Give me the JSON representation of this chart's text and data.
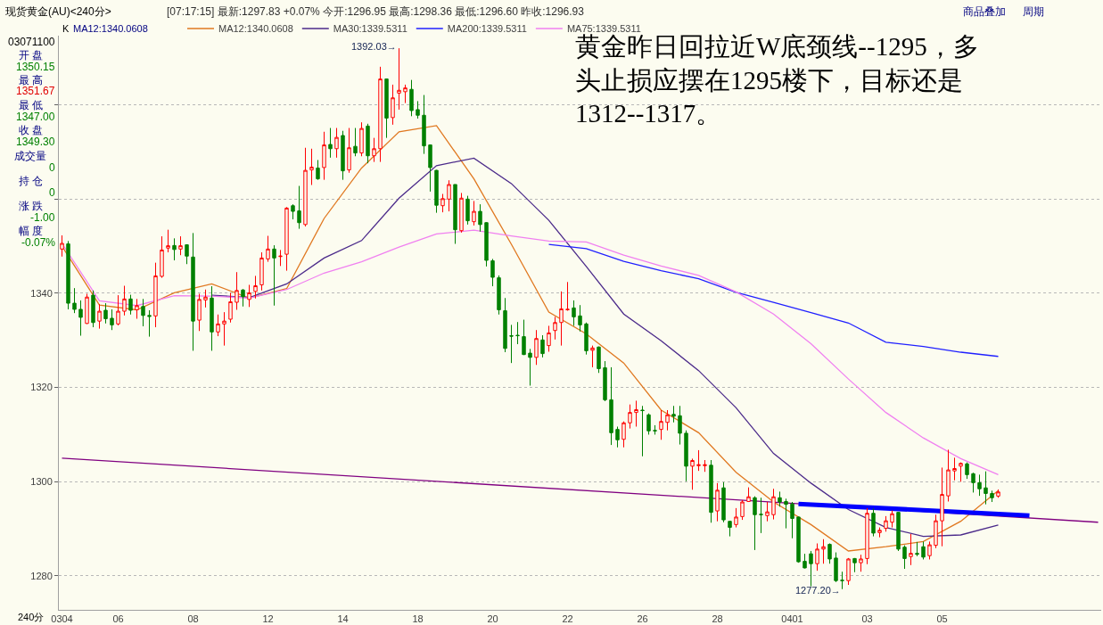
{
  "chart_data": {
    "type": "candlestick",
    "title": "现货黄金(AU)<240分>",
    "subtitle": "[07:17:15] 最新:1297.83 +0.07% 今开:1296.95 最高:1298.36 最低:1296.60 昨收:1296.93",
    "annotations": [
      "K",
      "MA12:1340.0608",
      "黄金昨日回拉近W底颈线--1295，多头止损应摆在1295楼下，目标还是1312--1317。",
      "商品叠加",
      "周期",
      "03071100",
      "开 盘",
      "1350.15",
      "最 高",
      "1351.67",
      "最 低",
      "1347.00",
      "收 盘",
      "1349.30",
      "成交量",
      "0",
      "持 仓",
      "0",
      "涨 跌",
      "-1.00",
      "幅 度",
      "-0.07%",
      "240分",
      "1392.03→",
      "1277.20→"
    ],
    "categories": [
      "0304",
      null,
      null,
      null,
      null,
      null,
      null,
      null,
      null,
      "06",
      null,
      null,
      null,
      null,
      null,
      null,
      null,
      null,
      null,
      null,
      null,
      "08",
      null,
      null,
      null,
      null,
      null,
      null,
      null,
      null,
      null,
      null,
      null,
      "12",
      null,
      null,
      null,
      null,
      null,
      null,
      null,
      null,
      null,
      null,
      null,
      "14",
      null,
      null,
      null,
      null,
      null,
      null,
      null,
      null,
      null,
      null,
      null,
      "18",
      null,
      null,
      null,
      null,
      null,
      null,
      null,
      null,
      null,
      null,
      null,
      "20",
      null,
      null,
      null,
      null,
      null,
      null,
      null,
      null,
      null,
      null,
      null,
      "22",
      null,
      null,
      null,
      null,
      null,
      null,
      null,
      null,
      null,
      null,
      null,
      "26",
      null,
      null,
      null,
      null,
      null,
      null,
      null,
      null,
      null,
      null,
      null,
      "28",
      null,
      null,
      null,
      null,
      null,
      null,
      null,
      null,
      null,
      null,
      null,
      "0401",
      null,
      null,
      null,
      null,
      null,
      null,
      null,
      null,
      null,
      null,
      null,
      "03",
      null,
      null,
      null,
      null,
      null,
      null,
      null,
      null,
      null,
      null,
      null,
      "05",
      null,
      null,
      null,
      null,
      null,
      null,
      null,
      null,
      null,
      null,
      null,
      null,
      null,
      null,
      null,
      null,
      null,
      null,
      null,
      null,
      null,
      null,
      null,
      null,
      null
    ],
    "ohlc": [
      [
        1349.4,
        1352.3,
        1347.8,
        1350.6
      ],
      [
        1350.5,
        1351.1,
        1336.6,
        1337.9
      ],
      [
        1337.9,
        1341.1,
        1335.8,
        1336.6
      ],
      [
        1336.6,
        1338.5,
        1331.0,
        1334.9
      ],
      [
        1333.6,
        1339.9,
        1333.5,
        1339.2
      ],
      [
        1339.6,
        1340.6,
        1332.8,
        1333.8
      ],
      [
        1334.1,
        1337.7,
        1332.5,
        1336.2
      ],
      [
        1336.4,
        1337.9,
        1333.6,
        1334.6
      ],
      [
        1334.7,
        1336.6,
        1332.2,
        1333.3
      ],
      [
        1333.5,
        1339.6,
        1333.2,
        1336.2
      ],
      [
        1336.2,
        1341.6,
        1335.3,
        1338.8
      ],
      [
        1338.8,
        1339.7,
        1335.5,
        1336.4
      ],
      [
        1336.5,
        1338.8,
        1334.6,
        1337.4
      ],
      [
        1337.2,
        1338.8,
        1333.0,
        1335.3
      ],
      [
        1335.3,
        1336.4,
        1330.8,
        1335.1
      ],
      [
        1335.2,
        1346.5,
        1332.8,
        1343.7
      ],
      [
        1343.6,
        1352.1,
        1343.3,
        1349.2
      ],
      [
        1349.6,
        1353.5,
        1348.7,
        1350.1
      ],
      [
        1350.15,
        1351.67,
        1347.0,
        1349.3
      ],
      [
        1349.4,
        1352.1,
        1348.1,
        1350.1
      ],
      [
        1350.3,
        1350.4,
        1346.2,
        1347.9
      ],
      [
        1347.7,
        1352.8,
        1327.8,
        1334.1
      ],
      [
        1334.3,
        1339.9,
        1332.0,
        1338.7
      ],
      [
        1338.6,
        1340.8,
        1337.0,
        1339.2
      ],
      [
        1339.0,
        1341.5,
        1327.8,
        1331.8
      ],
      [
        1331.8,
        1335.5,
        1330.9,
        1333.5
      ],
      [
        1333.5,
        1336.0,
        1328.9,
        1334.1
      ],
      [
        1334.5,
        1340.1,
        1333.8,
        1338.2
      ],
      [
        1338.1,
        1344.5,
        1336.5,
        1340.6
      ],
      [
        1340.7,
        1340.9,
        1337.2,
        1339.3
      ],
      [
        1338.7,
        1341.8,
        1337.1,
        1340.1
      ],
      [
        1340.4,
        1343.7,
        1338.9,
        1341.6
      ],
      [
        1341.8,
        1348.7,
        1340.6,
        1347.5
      ],
      [
        1347.3,
        1352.2,
        1346.7,
        1349.4
      ],
      [
        1349.4,
        1350.2,
        1337.4,
        1347.5
      ],
      [
        1347.8,
        1349.2,
        1345.8,
        1347.9
      ],
      [
        1348.3,
        1358.3,
        1344.8,
        1358.1
      ],
      [
        1358.6,
        1358.9,
        1355.7,
        1357.4
      ],
      [
        1357.5,
        1362.8,
        1353.7,
        1355.0
      ],
      [
        1354.6,
        1370.9,
        1354.2,
        1366.1
      ],
      [
        1366.2,
        1370.7,
        1363.0,
        1366.8
      ],
      [
        1366.6,
        1368.3,
        1364.1,
        1364.3
      ],
      [
        1366.7,
        1374.3,
        1364.1,
        1371.5
      ],
      [
        1371.6,
        1375.1,
        1368.8,
        1370.7
      ],
      [
        1370.7,
        1375.1,
        1368.8,
        1373.1
      ],
      [
        1373.5,
        1374.5,
        1364.1,
        1366.0
      ],
      [
        1366.2,
        1375.1,
        1365.6,
        1370.9
      ],
      [
        1371.2,
        1375.1,
        1369.1,
        1369.8
      ],
      [
        1369.8,
        1376.3,
        1369.1,
        1375.0
      ],
      [
        1375.5,
        1376.0,
        1367.6,
        1369.2
      ],
      [
        1369.2,
        1373.0,
        1367.9,
        1370.7
      ],
      [
        1370.7,
        1388.1,
        1367.9,
        1385.5
      ],
      [
        1385.5,
        1385.5,
        1373.0,
        1377.2
      ],
      [
        1377.3,
        1384.3,
        1375.8,
        1381.5
      ],
      [
        1382.5,
        1392.03,
        1379.0,
        1383.1
      ],
      [
        1382.8,
        1384.3,
        1380.4,
        1383.6
      ],
      [
        1383.3,
        1385.3,
        1377.6,
        1378.8
      ],
      [
        1379.0,
        1380.8,
        1377.1,
        1377.8
      ],
      [
        1377.8,
        1382.1,
        1369.6,
        1371.3
      ],
      [
        1371.5,
        1371.6,
        1361.6,
        1366.7
      ],
      [
        1366.1,
        1366.2,
        1357.1,
        1358.7
      ],
      [
        1358.6,
        1361.1,
        1357.2,
        1360.1
      ],
      [
        1360.0,
        1364.0,
        1357.4,
        1363.1
      ],
      [
        1363.1,
        1363.1,
        1350.5,
        1353.5
      ],
      [
        1353.3,
        1361.3,
        1352.9,
        1360.2
      ],
      [
        1360.0,
        1360.7,
        1354.6,
        1355.4
      ],
      [
        1355.2,
        1359.6,
        1354.4,
        1357.4
      ],
      [
        1357.4,
        1358.9,
        1353.1,
        1354.6
      ],
      [
        1355.0,
        1355.1,
        1345.7,
        1347.0
      ],
      [
        1346.9,
        1347.3,
        1341.5,
        1343.4
      ],
      [
        1343.3,
        1343.8,
        1335.5,
        1336.5
      ],
      [
        1336.3,
        1339.0,
        1327.5,
        1328.3
      ],
      [
        1331.0,
        1333.3,
        1325.2,
        1330.9
      ],
      [
        1331.1,
        1333.9,
        1329.2,
        1331.0
      ],
      [
        1330.8,
        1334.4,
        1326.9,
        1327.0
      ],
      [
        1327.3,
        1328.2,
        1320.4,
        1326.4
      ],
      [
        1326.4,
        1332.2,
        1324.8,
        1330.4
      ],
      [
        1330.1,
        1331.1,
        1326.4,
        1327.2
      ],
      [
        1328.9,
        1333.1,
        1327.6,
        1331.6
      ],
      [
        1332.1,
        1335.0,
        1330.2,
        1333.8
      ],
      [
        1333.8,
        1340.4,
        1328.9,
        1336.7
      ],
      [
        1336.5,
        1342.4,
        1336.3,
        1336.6
      ],
      [
        1336.9,
        1338.5,
        1333.1,
        1335.0
      ],
      [
        1335.2,
        1337.5,
        1331.9,
        1333.3
      ],
      [
        1333.5,
        1333.8,
        1327.0,
        1327.8
      ],
      [
        1327.9,
        1328.9,
        1324.3,
        1328.4
      ],
      [
        1328.6,
        1328.7,
        1323.1,
        1324.0
      ],
      [
        1324.2,
        1325.6,
        1317.1,
        1317.4
      ],
      [
        1317.4,
        1324.3,
        1307.8,
        1310.4
      ],
      [
        1311.1,
        1311.7,
        1307.3,
        1308.9
      ],
      [
        1309.0,
        1312.8,
        1307.3,
        1312.5
      ],
      [
        1312.5,
        1316.4,
        1311.3,
        1314.7
      ],
      [
        1314.7,
        1317.2,
        1311.7,
        1315.3
      ],
      [
        1315.2,
        1316.1,
        1305.4,
        1315.1
      ],
      [
        1314.2,
        1314.5,
        1310.0,
        1310.8
      ],
      [
        1310.9,
        1312.0,
        1310.0,
        1310.8
      ],
      [
        1311.1,
        1315.2,
        1308.9,
        1312.8
      ],
      [
        1312.6,
        1315.2,
        1310.9,
        1314.2
      ],
      [
        1314.3,
        1316.1,
        1312.6,
        1313.9
      ],
      [
        1314.0,
        1316.1,
        1307.9,
        1310.3
      ],
      [
        1310.3,
        1310.9,
        1300.1,
        1303.3
      ],
      [
        1303.3,
        1304.9,
        1298.3,
        1304.5
      ],
      [
        1303.4,
        1306.7,
        1302.3,
        1303.6
      ],
      [
        1303.4,
        1304.6,
        1302.1,
        1303.6
      ],
      [
        1303.5,
        1304.6,
        1291.3,
        1293.5
      ],
      [
        1293.8,
        1299.7,
        1291.6,
        1298.2
      ],
      [
        1298.7,
        1299.9,
        1291.4,
        1291.9
      ],
      [
        1291.6,
        1291.6,
        1288.4,
        1290.3
      ],
      [
        1290.9,
        1294.4,
        1290.3,
        1292.5
      ],
      [
        1292.6,
        1296.1,
        1291.9,
        1295.7
      ],
      [
        1295.8,
        1298.8,
        1295.7,
        1296.8
      ],
      [
        1296.6,
        1296.9,
        1285.5,
        1293.0
      ],
      [
        1293.1,
        1296.6,
        1289.1,
        1293.0
      ],
      [
        1292.8,
        1295.7,
        1291.6,
        1293.6
      ],
      [
        1293.0,
        1298.5,
        1292.0,
        1296.8
      ],
      [
        1296.6,
        1297.9,
        1294.7,
        1295.7
      ],
      [
        1295.8,
        1296.4,
        1290.1,
        1295.2
      ],
      [
        1295.3,
        1295.7,
        1288.0,
        1292.2
      ],
      [
        1292.5,
        1292.6,
        1282.8,
        1283.0
      ],
      [
        1283.1,
        1284.7,
        1281.6,
        1281.7
      ],
      [
        1284.7,
        1285.3,
        1277.8,
        1282.6
      ],
      [
        1282.6,
        1286.9,
        1281.1,
        1285.7
      ],
      [
        1285.7,
        1287.8,
        1282.6,
        1286.2
      ],
      [
        1286.7,
        1286.9,
        1282.6,
        1283.6
      ],
      [
        1283.8,
        1285.0,
        1278.7,
        1279.0
      ],
      [
        1279.1,
        1280.9,
        1277.2,
        1279.0
      ],
      [
        1279.0,
        1283.8,
        1278.1,
        1283.6
      ],
      [
        1283.7,
        1283.8,
        1280.8,
        1282.8
      ],
      [
        1282.8,
        1284.5,
        1280.9,
        1283.6
      ],
      [
        1283.7,
        1294.4,
        1282.5,
        1293.3
      ],
      [
        1293.3,
        1294.3,
        1288.4,
        1289.1
      ],
      [
        1289.2,
        1290.3,
        1288.2,
        1289.7
      ],
      [
        1290.1,
        1292.7,
        1289.4,
        1291.7
      ],
      [
        1291.4,
        1293.9,
        1290.3,
        1293.2
      ],
      [
        1293.5,
        1293.5,
        1285.3,
        1285.7
      ],
      [
        1286.1,
        1286.5,
        1281.5,
        1283.7
      ],
      [
        1284.1,
        1288.9,
        1282.3,
        1284.8
      ],
      [
        1284.8,
        1287.2,
        1284.2,
        1284.6
      ],
      [
        1286.2,
        1287.3,
        1283.5,
        1284.0
      ],
      [
        1284.3,
        1287.3,
        1283.5,
        1286.6
      ],
      [
        1286.5,
        1293.0,
        1285.9,
        1291.7
      ],
      [
        1291.7,
        1303.0,
        1286.3,
        1297.3
      ],
      [
        1297.0,
        1306.8,
        1295.8,
        1302.5
      ],
      [
        1302.3,
        1305.1,
        1300.3,
        1302.8
      ],
      [
        1303.3,
        1304.1,
        1300.0,
        1303.9
      ],
      [
        1303.8,
        1304.1,
        1300.6,
        1301.5
      ],
      [
        1301.7,
        1301.9,
        1297.7,
        1299.8
      ],
      [
        1299.8,
        1301.5,
        1297.0,
        1298.5
      ],
      [
        1298.7,
        1302.2,
        1295.2,
        1297.5
      ],
      [
        1297.5,
        1298.1,
        1295.7,
        1296.6
      ],
      [
        1296.95,
        1298.36,
        1296.6,
        1297.83
      ],
      null,
      null,
      null,
      null,
      null,
      null,
      null,
      null,
      null,
      null,
      null,
      null,
      null,
      null,
      null,
      null
    ],
    "series": [
      {
        "type": "line",
        "name": "MA12:1340.0608",
        "color": "#e07820",
        "values": [
          1350,
          null,
          null,
          null,
          null,
          null,
          1337.5,
          null,
          null,
          null,
          null,
          null,
          1336.5,
          null,
          null,
          null,
          null,
          null,
          1340.1,
          null,
          null,
          null,
          null,
          null,
          1342,
          null,
          null,
          null,
          null,
          null,
          1339,
          null,
          null,
          null,
          null,
          null,
          1341,
          null,
          null,
          null,
          null,
          null,
          1355.9,
          null,
          null,
          null,
          null,
          null,
          1366.6,
          null,
          null,
          null,
          null,
          null,
          1374.3,
          null,
          null,
          null,
          null,
          null,
          1375.6,
          null,
          null,
          null,
          null,
          null,
          1364.3,
          null,
          null,
          null,
          null,
          null,
          1350.4,
          null,
          null,
          null,
          null,
          null,
          1336,
          null,
          null,
          null,
          null,
          null,
          1331.4,
          null,
          null,
          null,
          null,
          null,
          1325.2,
          null,
          null,
          null,
          null,
          null,
          1315.2,
          null,
          null,
          null,
          null,
          null,
          1310.4,
          null,
          null,
          null,
          null,
          null,
          1302,
          null,
          null,
          null,
          null,
          null,
          1295.7,
          null,
          null,
          null,
          null,
          null,
          1290.9,
          null,
          null,
          null,
          null,
          null,
          1285.3,
          null,
          null,
          null,
          null,
          null,
          1286.2,
          null,
          null,
          null,
          null,
          null,
          1287.3,
          null,
          null,
          null,
          null,
          null,
          1291.6,
          null,
          null,
          null,
          null,
          null,
          1298.1,
          null,
          null,
          null,
          null,
          null,
          null,
          null,
          null,
          null,
          null,
          null,
          null,
          null,
          null,
          null,
          null
        ]
      },
      {
        "type": "line",
        "name": "MA30:1339.5311",
        "color": "#4b2a8a",
        "values": [
          null,
          null,
          null,
          null,
          null,
          null,
          null,
          null,
          null,
          null,
          null,
          null,
          null,
          null,
          null,
          null,
          null,
          null,
          null,
          null,
          null,
          null,
          null,
          null,
          1339.6,
          null,
          null,
          null,
          null,
          null,
          1339.1,
          null,
          null,
          null,
          null,
          null,
          1342,
          null,
          null,
          null,
          null,
          null,
          1347.5,
          null,
          null,
          null,
          null,
          null,
          1351.2,
          null,
          null,
          null,
          null,
          null,
          1360.2,
          null,
          null,
          null,
          null,
          null,
          1367.1,
          null,
          null,
          null,
          null,
          null,
          1368.7,
          null,
          null,
          null,
          null,
          null,
          1363.3,
          null,
          null,
          null,
          null,
          null,
          1355.5,
          null,
          null,
          null,
          null,
          null,
          1345.7,
          null,
          null,
          null,
          null,
          null,
          1335.6,
          null,
          null,
          null,
          null,
          null,
          1329.9,
          null,
          null,
          null,
          null,
          null,
          1323.6,
          null,
          null,
          null,
          null,
          null,
          1315.7,
          null,
          null,
          null,
          null,
          null,
          1306,
          null,
          null,
          null,
          null,
          null,
          1299.7,
          null,
          null,
          null,
          null,
          null,
          1294.1,
          null,
          null,
          null,
          null,
          null,
          1290.3,
          null,
          null,
          null,
          null,
          null,
          1288.4,
          null,
          null,
          null,
          null,
          null,
          1288.7,
          null,
          null,
          null,
          null,
          null,
          1290.8,
          null,
          null,
          null,
          null,
          null,
          null,
          null,
          null,
          null,
          null,
          null,
          null,
          null,
          null,
          null,
          null
        ]
      },
      {
        "type": "line",
        "name": "MA200:1339.5311",
        "color": "#2020ff",
        "values": [
          null,
          null,
          null,
          null,
          null,
          null,
          null,
          null,
          null,
          null,
          null,
          null,
          null,
          null,
          null,
          null,
          null,
          null,
          null,
          null,
          null,
          null,
          null,
          null,
          null,
          null,
          null,
          null,
          null,
          null,
          null,
          null,
          null,
          null,
          null,
          null,
          null,
          null,
          null,
          null,
          null,
          null,
          null,
          null,
          null,
          null,
          null,
          null,
          null,
          null,
          null,
          null,
          null,
          null,
          null,
          null,
          null,
          null,
          null,
          null,
          null,
          null,
          null,
          null,
          null,
          null,
          null,
          null,
          null,
          null,
          null,
          null,
          null,
          null,
          null,
          null,
          null,
          null,
          1350.4,
          null,
          null,
          null,
          null,
          null,
          1349.5,
          null,
          null,
          null,
          null,
          null,
          1346.8,
          null,
          null,
          null,
          null,
          null,
          1344.8,
          null,
          null,
          null,
          null,
          null,
          1343.1,
          null,
          null,
          null,
          null,
          null,
          1340.2,
          null,
          null,
          null,
          null,
          null,
          1338.1,
          null,
          null,
          null,
          null,
          null,
          1335.9,
          null,
          null,
          null,
          null,
          null,
          1333.7,
          null,
          null,
          null,
          null,
          null,
          1329.6,
          null,
          null,
          null,
          null,
          null,
          1328.7,
          null,
          null,
          null,
          null,
          null,
          1327.5,
          null,
          null,
          null,
          null,
          null,
          1326.6,
          null,
          null,
          null,
          null,
          null,
          null,
          null,
          null,
          null,
          null,
          null,
          null,
          null,
          null,
          null,
          null
        ]
      },
      {
        "type": "line",
        "name": "MA75:1339.5311",
        "color": "#f080f0",
        "values": [
          1350.6,
          null,
          null,
          null,
          null,
          null,
          1338.4,
          null,
          null,
          null,
          null,
          null,
          1337.4,
          null,
          null,
          null,
          null,
          null,
          1339.5,
          null,
          null,
          null,
          null,
          null,
          1339.4,
          null,
          null,
          null,
          null,
          null,
          1339,
          null,
          null,
          null,
          null,
          null,
          1340.8,
          null,
          null,
          null,
          null,
          null,
          1344.3,
          null,
          null,
          null,
          null,
          null,
          1346.7,
          null,
          null,
          null,
          null,
          null,
          1349.8,
          null,
          null,
          null,
          null,
          null,
          1352.6,
          null,
          null,
          null,
          null,
          null,
          1353.4,
          null,
          null,
          null,
          null,
          null,
          1352.2,
          null,
          null,
          null,
          null,
          null,
          1351.1,
          null,
          null,
          null,
          null,
          null,
          1350.9,
          null,
          null,
          null,
          null,
          null,
          1348.1,
          null,
          null,
          null,
          null,
          null,
          1345.8,
          null,
          null,
          null,
          null,
          null,
          1343.8,
          null,
          null,
          null,
          null,
          null,
          1340.3,
          null,
          null,
          null,
          null,
          null,
          1335.6,
          null,
          null,
          null,
          null,
          null,
          1329.3,
          null,
          null,
          null,
          null,
          null,
          1321.8,
          null,
          null,
          null,
          null,
          null,
          1314.7,
          null,
          null,
          null,
          null,
          null,
          1309.3,
          null,
          null,
          null,
          null,
          null,
          1304.9,
          null,
          null,
          null,
          null,
          null,
          1301.5,
          null,
          null,
          null,
          null,
          null,
          null,
          null,
          null,
          null,
          null,
          null,
          null,
          null,
          null,
          null,
          null
        ]
      },
      {
        "type": "line",
        "color": "#800080",
        "values": [
          1305.0,
          null,
          null,
          null,
          null,
          null,
          null,
          null,
          null,
          null,
          null,
          null,
          null,
          null,
          null,
          null,
          null,
          null,
          null,
          null,
          null,
          null,
          null,
          null,
          null,
          null,
          null,
          null,
          null,
          null,
          null,
          null,
          null,
          null,
          null,
          null,
          null,
          null,
          null,
          null,
          null,
          null,
          null,
          null,
          null,
          null,
          null,
          null,
          null,
          null,
          null,
          null,
          null,
          null,
          null,
          null,
          null,
          null,
          null,
          null,
          null,
          null,
          null,
          null,
          null,
          null,
          null,
          null,
          null,
          null,
          null,
          null,
          null,
          null,
          null,
          null,
          null,
          null,
          null,
          null,
          null,
          null,
          null,
          null,
          null,
          null,
          null,
          null,
          null,
          null,
          null,
          null,
          null,
          null,
          null,
          null,
          null,
          null,
          null,
          null,
          null,
          null,
          null,
          null,
          null,
          null,
          null,
          null,
          null,
          null,
          null,
          null,
          null,
          null,
          null,
          null,
          null,
          null,
          null,
          null,
          null,
          null,
          null,
          null,
          null,
          null,
          null,
          null,
          null,
          null,
          null,
          null,
          null,
          null,
          null,
          null,
          null,
          null,
          null,
          null,
          null,
          null,
          null,
          null,
          null,
          null,
          null,
          null,
          null,
          null,
          null,
          null,
          null,
          null,
          null,
          null,
          null,
          null,
          null,
          null,
          null,
          null,
          null,
          null,
          null,
          null,
          1291.4
        ]
      },
      {
        "type": "line",
        "color": "#0000ff",
        "values": [
          null,
          null,
          null,
          null,
          null,
          null,
          null,
          null,
          null,
          null,
          null,
          null,
          null,
          null,
          null,
          null,
          null,
          null,
          null,
          null,
          null,
          null,
          null,
          null,
          null,
          null,
          null,
          null,
          null,
          null,
          null,
          null,
          null,
          null,
          null,
          null,
          null,
          null,
          null,
          null,
          null,
          null,
          null,
          null,
          null,
          null,
          null,
          null,
          null,
          null,
          null,
          null,
          null,
          null,
          null,
          null,
          null,
          null,
          null,
          null,
          null,
          null,
          null,
          null,
          null,
          null,
          null,
          null,
          null,
          null,
          null,
          null,
          null,
          null,
          null,
          null,
          null,
          null,
          null,
          null,
          null,
          null,
          null,
          null,
          null,
          null,
          null,
          null,
          null,
          null,
          null,
          null,
          null,
          null,
          null,
          null,
          null,
          null,
          null,
          null,
          null,
          null,
          null,
          null,
          null,
          null,
          null,
          null,
          null,
          null,
          null,
          null,
          null,
          null,
          null,
          null,
          null,
          null,
          1295.3,
          null,
          null,
          null,
          null,
          null,
          null,
          null,
          null,
          null,
          null,
          null,
          null,
          null,
          null,
          null,
          null,
          null,
          null,
          null,
          null,
          null,
          null,
          null,
          null,
          null,
          null,
          null,
          null,
          null,
          null,
          null,
          null,
          null,
          null,
          null,
          null,
          1292.8,
          null,
          null,
          null,
          null,
          null,
          null,
          null,
          null,
          null,
          null,
          null
        ]
      }
    ],
    "ylim": [
      1272.8,
      1394.7
    ],
    "yticks": [
      1280,
      1300,
      1320,
      1340,
      {
        "value": 1360,
        "label": null
      },
      {
        "value": 1380,
        "label": null
      }
    ],
    "grid": "y",
    "legend": "top left"
  }
}
